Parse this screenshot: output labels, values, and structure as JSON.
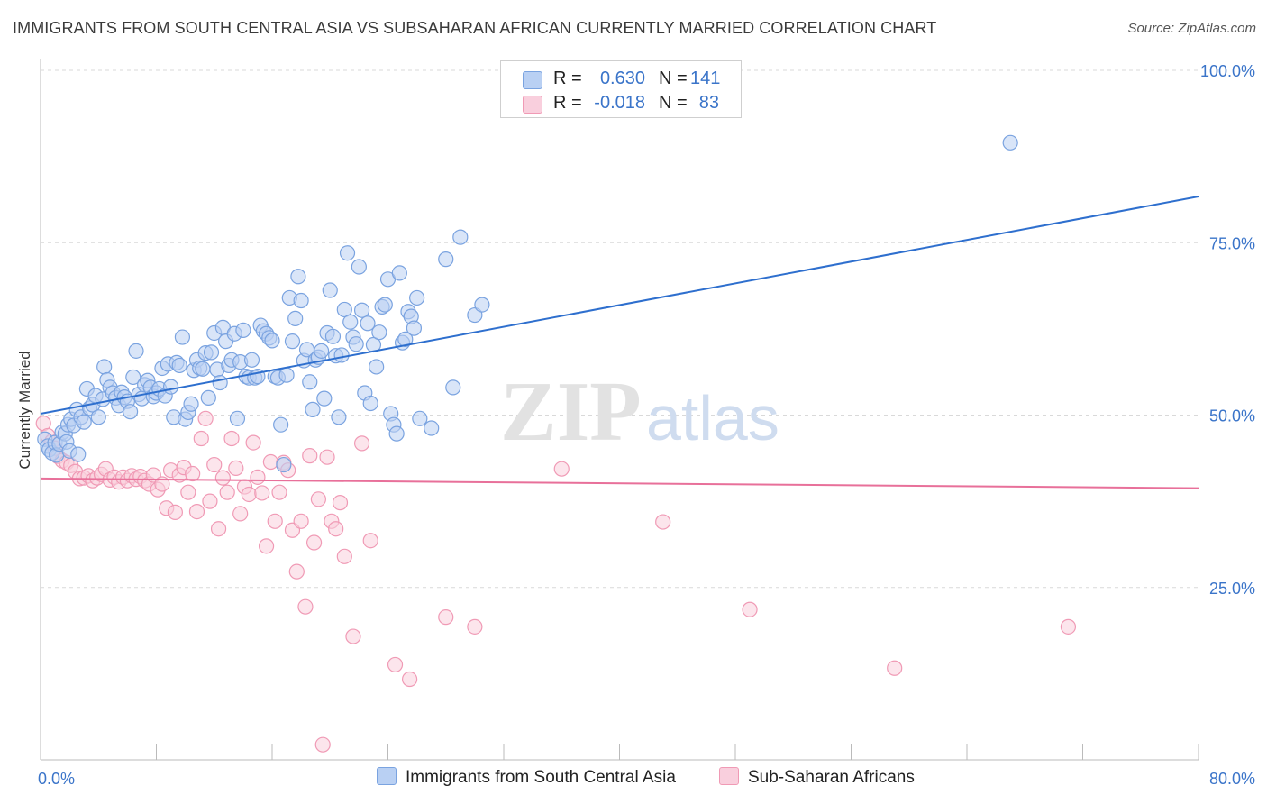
{
  "title": "IMMIGRANTS FROM SOUTH CENTRAL ASIA VS SUBSAHARAN AFRICAN CURRENTLY MARRIED CORRELATION CHART",
  "source": "Source: ZipAtlas.com",
  "watermark": {
    "zip": "ZIP",
    "atlas": "atlas"
  },
  "legend": {
    "rows": [
      {
        "r_label": "R =",
        "r_value": "0.630",
        "n_label": "N =",
        "n_value": "141",
        "swatch": "#a9c7f0"
      },
      {
        "r_label": "R =",
        "r_value": "-0.018",
        "n_label": "N =",
        "n_value": "83",
        "swatch": "#f7bfd0"
      }
    ]
  },
  "bottom_legend": {
    "series1": "Immigrants from South Central Asia",
    "series2": "Sub-Saharan Africans"
  },
  "colors": {
    "blue_point": "#7aa3e0",
    "blue_fill": "#b9d0f3",
    "blue_line": "#2e6fce",
    "pink_point": "#f09ab5",
    "pink_fill": "#f9cfdd",
    "pink_line": "#e8709a",
    "value_text": "#3a74c9",
    "grid": "#d9d9d9"
  },
  "chart_data": {
    "type": "scatter",
    "title": "IMMIGRANTS FROM SOUTH CENTRAL ASIA VS SUBSAHARAN AFRICAN CURRENTLY MARRIED CORRELATION CHART",
    "xlabel": "",
    "ylabel": "Currently Married",
    "xlim": [
      0,
      80
    ],
    "ylim": [
      0,
      100
    ],
    "x_tick_labels": [
      "0.0%",
      "80.0%"
    ],
    "y_tick_labels": [
      "100.0%",
      "75.0%",
      "50.0%",
      "25.0%"
    ],
    "y_tick_values": [
      100,
      75,
      50,
      25
    ],
    "grid": true,
    "legend_position": "top-center",
    "series": [
      {
        "name": "Immigrants from South Central Asia",
        "r": 0.63,
        "n": 141,
        "trend": {
          "x": [
            0,
            80
          ],
          "y": [
            50.2,
            81.7
          ]
        },
        "points": [
          [
            0.3,
            46.5
          ],
          [
            0.5,
            45.5
          ],
          [
            0.6,
            45.0
          ],
          [
            0.8,
            44.5
          ],
          [
            1.0,
            46.0
          ],
          [
            1.1,
            44.2
          ],
          [
            1.3,
            45.8
          ],
          [
            1.5,
            47.5
          ],
          [
            1.7,
            47.3
          ],
          [
            1.8,
            46.1
          ],
          [
            1.9,
            48.6
          ],
          [
            2.0,
            44.8
          ],
          [
            2.1,
            49.4
          ],
          [
            2.3,
            48.5
          ],
          [
            2.5,
            50.8
          ],
          [
            2.6,
            44.3
          ],
          [
            2.8,
            49.7
          ],
          [
            3.0,
            49.0
          ],
          [
            3.2,
            53.8
          ],
          [
            3.4,
            51.0
          ],
          [
            3.6,
            51.5
          ],
          [
            3.8,
            52.8
          ],
          [
            4.0,
            49.7
          ],
          [
            4.3,
            52.3
          ],
          [
            4.4,
            57.0
          ],
          [
            4.6,
            55.1
          ],
          [
            4.8,
            54.0
          ],
          [
            5.0,
            53.2
          ],
          [
            5.2,
            52.5
          ],
          [
            5.4,
            51.4
          ],
          [
            5.6,
            53.3
          ],
          [
            5.8,
            52.6
          ],
          [
            6.0,
            52.0
          ],
          [
            6.2,
            50.5
          ],
          [
            6.4,
            55.5
          ],
          [
            6.6,
            59.3
          ],
          [
            6.8,
            53.0
          ],
          [
            7.0,
            52.4
          ],
          [
            7.2,
            54.4
          ],
          [
            7.4,
            55.0
          ],
          [
            7.6,
            54.0
          ],
          [
            7.8,
            52.7
          ],
          [
            8.0,
            53.2
          ],
          [
            8.2,
            53.8
          ],
          [
            8.4,
            56.8
          ],
          [
            8.6,
            52.8
          ],
          [
            8.8,
            57.4
          ],
          [
            9.0,
            54.1
          ],
          [
            9.2,
            49.7
          ],
          [
            9.4,
            57.6
          ],
          [
            9.6,
            57.2
          ],
          [
            9.8,
            61.3
          ],
          [
            10.0,
            49.4
          ],
          [
            10.2,
            50.4
          ],
          [
            10.4,
            51.6
          ],
          [
            10.6,
            56.5
          ],
          [
            10.8,
            58.0
          ],
          [
            11.0,
            56.8
          ],
          [
            11.2,
            56.7
          ],
          [
            11.4,
            59.0
          ],
          [
            11.6,
            52.5
          ],
          [
            11.8,
            59.1
          ],
          [
            12.0,
            61.9
          ],
          [
            12.2,
            56.6
          ],
          [
            12.4,
            54.7
          ],
          [
            12.6,
            62.7
          ],
          [
            12.8,
            60.7
          ],
          [
            13.0,
            57.2
          ],
          [
            13.2,
            58.0
          ],
          [
            13.4,
            61.8
          ],
          [
            13.6,
            49.5
          ],
          [
            13.8,
            57.7
          ],
          [
            14.0,
            62.3
          ],
          [
            14.2,
            55.6
          ],
          [
            14.4,
            55.4
          ],
          [
            14.6,
            58.0
          ],
          [
            14.8,
            55.4
          ],
          [
            15.0,
            55.6
          ],
          [
            15.2,
            63.0
          ],
          [
            15.4,
            62.2
          ],
          [
            15.6,
            61.8
          ],
          [
            15.8,
            61.2
          ],
          [
            16.0,
            60.8
          ],
          [
            16.2,
            55.6
          ],
          [
            16.4,
            55.4
          ],
          [
            16.6,
            48.6
          ],
          [
            16.8,
            42.8
          ],
          [
            17.0,
            55.8
          ],
          [
            17.2,
            67.0
          ],
          [
            17.4,
            60.7
          ],
          [
            17.6,
            64.0
          ],
          [
            17.8,
            70.1
          ],
          [
            18.0,
            66.6
          ],
          [
            18.2,
            57.9
          ],
          [
            18.4,
            59.5
          ],
          [
            18.6,
            54.8
          ],
          [
            18.8,
            50.8
          ],
          [
            19.0,
            58.0
          ],
          [
            19.2,
            58.4
          ],
          [
            19.4,
            59.3
          ],
          [
            19.6,
            52.4
          ],
          [
            19.8,
            61.9
          ],
          [
            20.0,
            68.1
          ],
          [
            20.2,
            61.4
          ],
          [
            20.4,
            58.6
          ],
          [
            20.6,
            49.7
          ],
          [
            20.8,
            58.7
          ],
          [
            21.0,
            65.3
          ],
          [
            21.2,
            73.5
          ],
          [
            21.4,
            63.5
          ],
          [
            21.6,
            61.3
          ],
          [
            21.8,
            60.3
          ],
          [
            22.0,
            71.5
          ],
          [
            22.2,
            65.2
          ],
          [
            22.4,
            53.2
          ],
          [
            22.6,
            63.3
          ],
          [
            22.8,
            51.7
          ],
          [
            23.0,
            60.2
          ],
          [
            23.2,
            57.0
          ],
          [
            23.4,
            62.0
          ],
          [
            23.6,
            65.7
          ],
          [
            23.8,
            66.0
          ],
          [
            24.0,
            69.7
          ],
          [
            24.2,
            50.2
          ],
          [
            24.4,
            48.6
          ],
          [
            24.6,
            47.3
          ],
          [
            24.8,
            70.6
          ],
          [
            25.0,
            60.5
          ],
          [
            25.2,
            61.0
          ],
          [
            25.4,
            65.0
          ],
          [
            25.6,
            64.3
          ],
          [
            25.8,
            62.6
          ],
          [
            26.0,
            67.0
          ],
          [
            26.2,
            49.5
          ],
          [
            27.0,
            48.1
          ],
          [
            28.0,
            72.6
          ],
          [
            28.5,
            54.0
          ],
          [
            29.0,
            75.8
          ],
          [
            30.0,
            64.5
          ],
          [
            30.5,
            66.0
          ],
          [
            67.0,
            89.5
          ]
        ]
      },
      {
        "name": "Sub-Saharan Africans",
        "r": -0.018,
        "n": 83,
        "trend": {
          "x": [
            0,
            80
          ],
          "y": [
            40.8,
            39.4
          ]
        },
        "points": [
          [
            0.2,
            48.8
          ],
          [
            0.5,
            47.0
          ],
          [
            0.8,
            46.2
          ],
          [
            1.0,
            45.2
          ],
          [
            1.2,
            44.0
          ],
          [
            1.5,
            43.4
          ],
          [
            1.8,
            43.1
          ],
          [
            2.1,
            42.7
          ],
          [
            2.4,
            41.8
          ],
          [
            2.7,
            40.8
          ],
          [
            3.0,
            40.9
          ],
          [
            3.3,
            41.2
          ],
          [
            3.6,
            40.5
          ],
          [
            3.9,
            40.9
          ],
          [
            4.2,
            41.4
          ],
          [
            4.5,
            42.2
          ],
          [
            4.8,
            40.6
          ],
          [
            5.1,
            41.0
          ],
          [
            5.4,
            40.3
          ],
          [
            5.7,
            41.0
          ],
          [
            6.0,
            40.5
          ],
          [
            6.3,
            41.2
          ],
          [
            6.6,
            40.7
          ],
          [
            6.9,
            41.1
          ],
          [
            7.2,
            40.5
          ],
          [
            7.5,
            40.0
          ],
          [
            7.8,
            41.3
          ],
          [
            8.1,
            39.2
          ],
          [
            8.4,
            40.0
          ],
          [
            8.7,
            36.5
          ],
          [
            9.0,
            42.0
          ],
          [
            9.3,
            35.9
          ],
          [
            9.6,
            41.3
          ],
          [
            9.9,
            42.4
          ],
          [
            10.2,
            38.8
          ],
          [
            10.5,
            41.5
          ],
          [
            10.8,
            36.0
          ],
          [
            11.1,
            46.6
          ],
          [
            11.4,
            49.5
          ],
          [
            11.7,
            37.5
          ],
          [
            12.0,
            42.8
          ],
          [
            12.3,
            33.5
          ],
          [
            12.6,
            40.9
          ],
          [
            12.9,
            38.8
          ],
          [
            13.2,
            46.6
          ],
          [
            13.5,
            42.3
          ],
          [
            13.8,
            35.7
          ],
          [
            14.1,
            39.6
          ],
          [
            14.4,
            38.5
          ],
          [
            14.7,
            46.0
          ],
          [
            15.0,
            41.0
          ],
          [
            15.3,
            38.7
          ],
          [
            15.6,
            31.0
          ],
          [
            15.9,
            43.2
          ],
          [
            16.2,
            34.6
          ],
          [
            16.5,
            38.8
          ],
          [
            16.8,
            43.1
          ],
          [
            17.1,
            42.0
          ],
          [
            17.4,
            33.3
          ],
          [
            17.7,
            27.3
          ],
          [
            18.0,
            34.6
          ],
          [
            18.3,
            22.2
          ],
          [
            18.6,
            44.1
          ],
          [
            18.9,
            31.5
          ],
          [
            19.2,
            37.8
          ],
          [
            19.5,
            2.2
          ],
          [
            19.8,
            43.9
          ],
          [
            20.1,
            34.6
          ],
          [
            20.4,
            33.5
          ],
          [
            20.7,
            37.3
          ],
          [
            21.0,
            29.5
          ],
          [
            21.6,
            17.9
          ],
          [
            22.2,
            45.9
          ],
          [
            22.8,
            31.8
          ],
          [
            24.5,
            13.8
          ],
          [
            25.5,
            11.7
          ],
          [
            28.0,
            20.7
          ],
          [
            30.0,
            19.3
          ],
          [
            36.0,
            42.2
          ],
          [
            43.0,
            34.5
          ],
          [
            49.0,
            21.8
          ],
          [
            59.0,
            13.3
          ],
          [
            71.0,
            19.3
          ]
        ]
      }
    ]
  }
}
